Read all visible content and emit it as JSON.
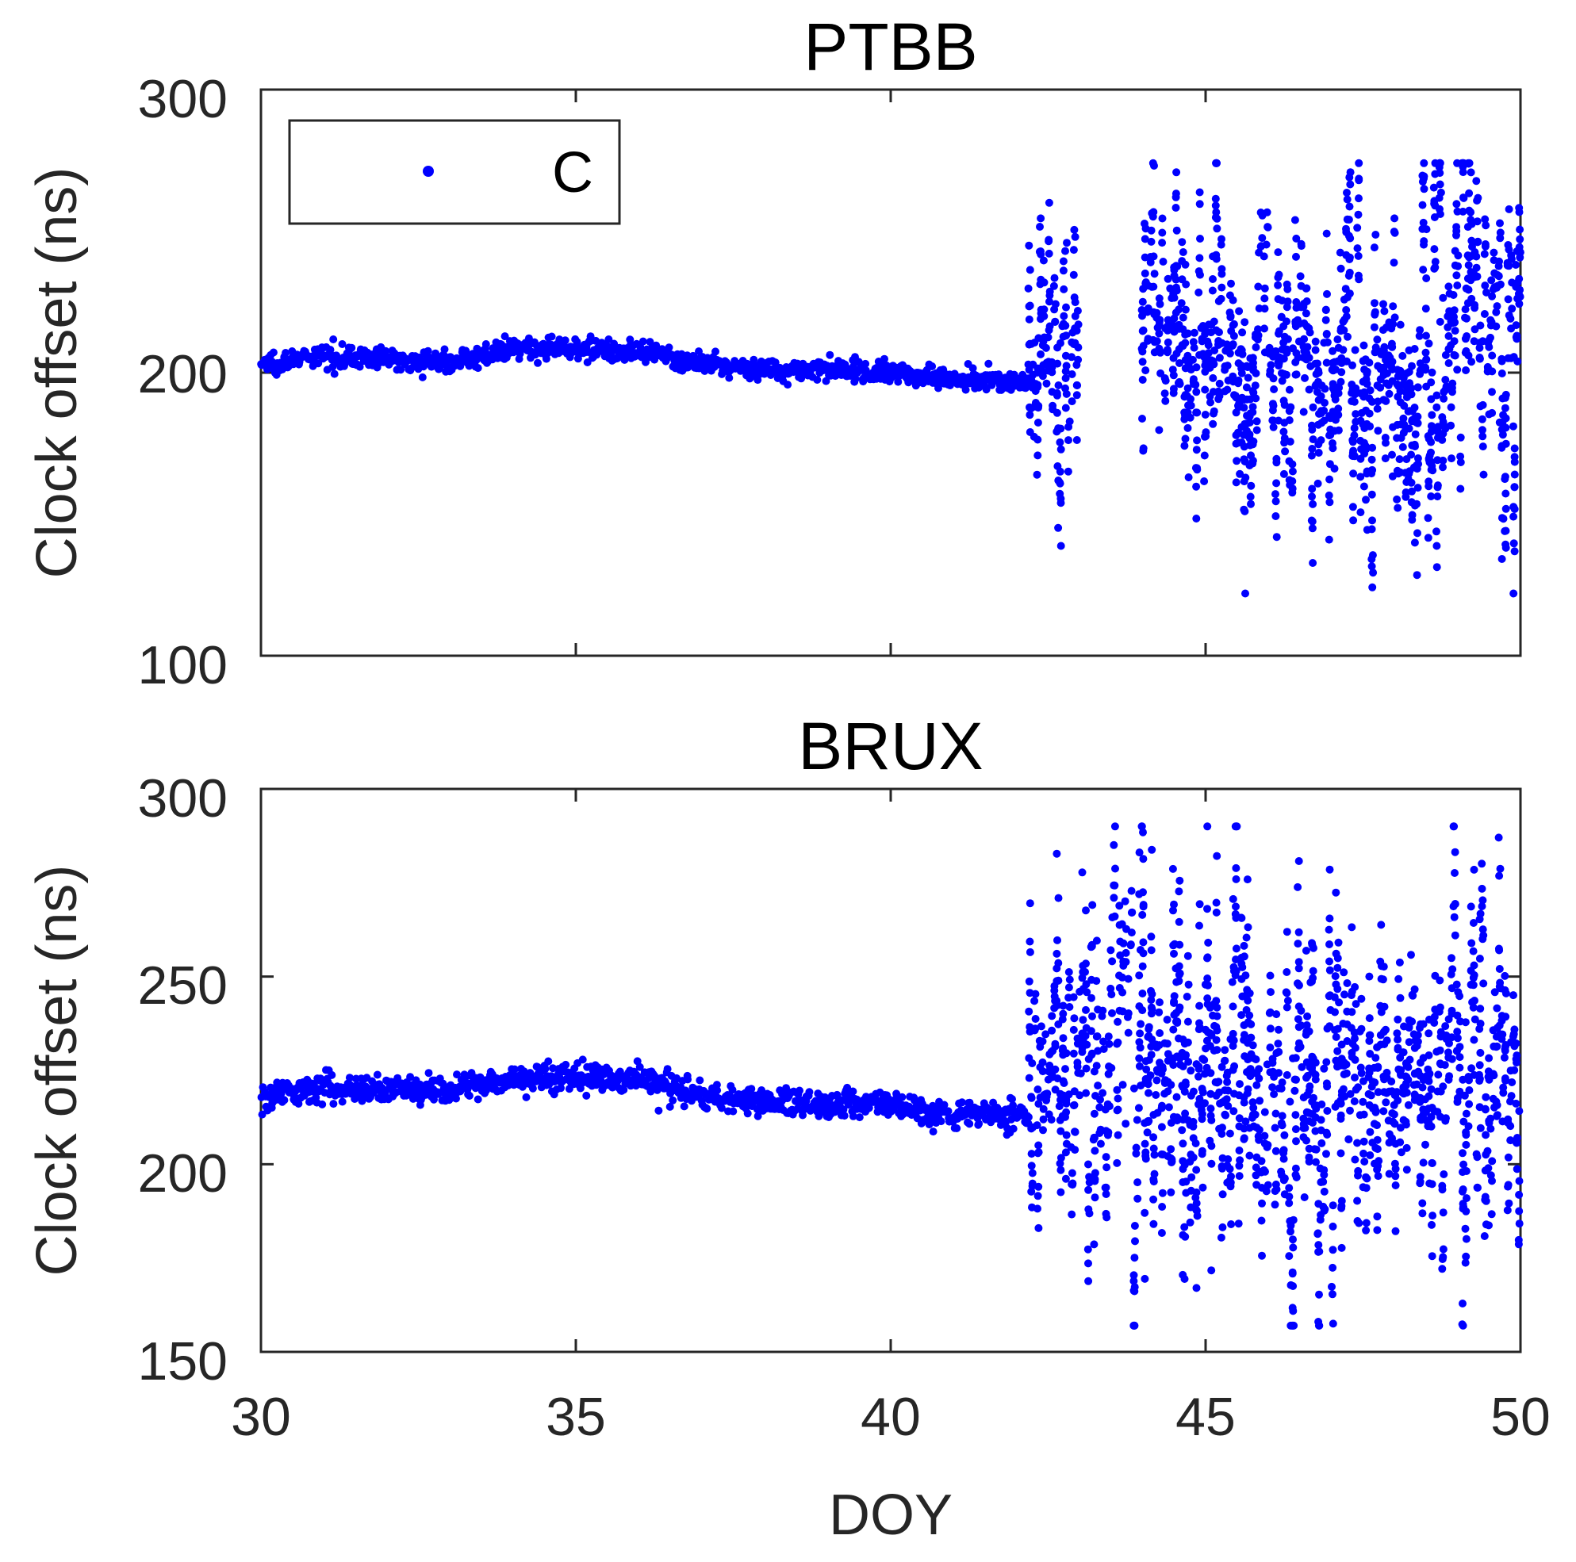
{
  "chart_data": [
    {
      "type": "scatter",
      "title": "PTBB",
      "xlabel": "",
      "ylabel": "Clock offset (ns)",
      "xlim": [
        30,
        50
      ],
      "ylim": [
        100,
        300
      ],
      "xticks": [
        "30",
        "35",
        "40",
        "45",
        "50"
      ],
      "yticks": [
        "100",
        "200",
        "300"
      ],
      "show_x_tick_labels": false,
      "grid": false,
      "legend": {
        "position": "top-left",
        "entries": [
          "C"
        ]
      },
      "series": [
        {
          "name": "C",
          "color": "#0000ff",
          "stable_trend": [
            [
              30.0,
              203
            ],
            [
              31.0,
              206
            ],
            [
              32.0,
              205
            ],
            [
              33.0,
              204
            ],
            [
              34.0,
              208
            ],
            [
              35.0,
              209
            ],
            [
              36.0,
              207
            ],
            [
              37.0,
              203
            ],
            [
              38.0,
              201
            ],
            [
              39.0,
              201
            ],
            [
              40.0,
              200
            ],
            [
              41.0,
              198
            ],
            [
              42.0,
              197
            ],
            [
              42.2,
              197
            ]
          ],
          "stable_jitter": 3,
          "noisy_segments": [
            {
              "x": [
                42.2,
                43.0
              ],
              "center": 203,
              "spread": 25,
              "min": 135,
              "max": 260
            },
            {
              "x": [
                44.0,
                50.0
              ],
              "center": 207,
              "spread": 32,
              "min": 122,
              "max": 274
            }
          ]
        }
      ]
    },
    {
      "type": "scatter",
      "title": "BRUX",
      "xlabel": "DOY",
      "ylabel": "Clock offset (ns)",
      "xlim": [
        30,
        50
      ],
      "ylim": [
        150,
        300
      ],
      "xticks": [
        "30",
        "35",
        "40",
        "45",
        "50"
      ],
      "yticks": [
        "150",
        "200",
        "250",
        "300"
      ],
      "show_x_tick_labels": true,
      "grid": false,
      "series": [
        {
          "name": "C",
          "color": "#0000ff",
          "stable_trend": [
            [
              30.0,
              218
            ],
            [
              31.0,
              221
            ],
            [
              32.0,
              220
            ],
            [
              33.0,
              220
            ],
            [
              34.0,
              223
            ],
            [
              35.0,
              223
            ],
            [
              36.0,
              223
            ],
            [
              37.0,
              218
            ],
            [
              38.0,
              217
            ],
            [
              39.0,
              216
            ],
            [
              40.0,
              216
            ],
            [
              41.0,
              213
            ],
            [
              42.0,
              213
            ],
            [
              42.2,
              213
            ]
          ],
          "stable_jitter": 3,
          "noisy_segments": [
            {
              "x": [
                42.2,
                50.0
              ],
              "center": 222,
              "spread": 28,
              "min": 157,
              "max": 290
            }
          ]
        }
      ]
    }
  ]
}
